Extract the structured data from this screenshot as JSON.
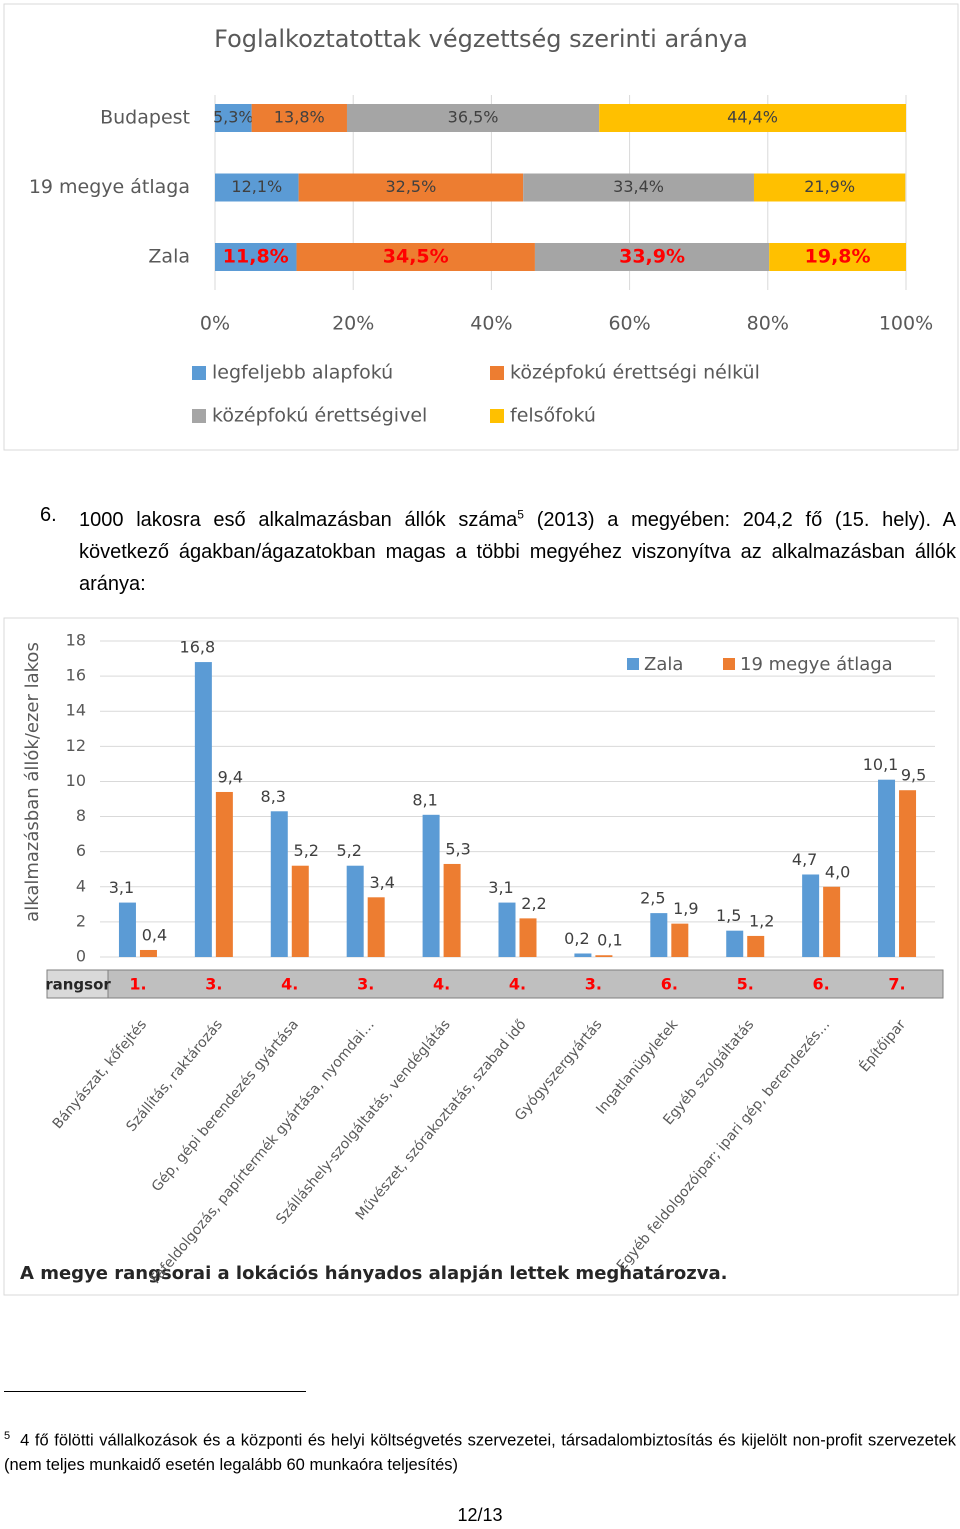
{
  "chart_data": [
    {
      "type": "bar",
      "orientation": "horizontal",
      "stacked": true,
      "grid": true,
      "title": "Foglalkoztatottak végzettség szerinti aránya",
      "categories": [
        "Budapest",
        "19 megye átlaga",
        "Zala"
      ],
      "label_colors": [
        "#404040",
        "#404040",
        "#ff0000"
      ],
      "label_bold": [
        false,
        false,
        true
      ],
      "series": [
        {
          "name": "legfeljebb alapfokú",
          "color": "#5b9bd5",
          "values": [
            5.3,
            12.1,
            11.8
          ],
          "value_labels": [
            "5,3%",
            "12,1%",
            "11,8%"
          ]
        },
        {
          "name": "középfokú érettségi nélkül",
          "color": "#ed7d31",
          "values": [
            13.8,
            32.5,
            34.5
          ],
          "value_labels": [
            "13,8%",
            "32,5%",
            "34,5%"
          ]
        },
        {
          "name": "középfokú érettségivel",
          "color": "#a5a5a5",
          "values": [
            36.5,
            33.4,
            33.9
          ],
          "value_labels": [
            "36,5%",
            "33,4%",
            "33,9%"
          ]
        },
        {
          "name": "felsőfokú",
          "color": "#ffc000",
          "values": [
            44.4,
            21.9,
            19.8
          ],
          "value_labels": [
            "44,4%",
            "21,9%",
            "19,8%"
          ]
        }
      ],
      "xlim": [
        0,
        100
      ],
      "xticks": [
        {
          "value": 0,
          "label": "0%"
        },
        {
          "value": 20,
          "label": "20%"
        },
        {
          "value": 40,
          "label": "40%"
        },
        {
          "value": 60,
          "label": "60%"
        },
        {
          "value": 80,
          "label": "80%"
        },
        {
          "value": 100,
          "label": "100%"
        }
      ]
    },
    {
      "type": "bar",
      "orientation": "vertical",
      "stacked": false,
      "grid": true,
      "y_label": "alkalmazásban állók/ezer lakos",
      "categories": [
        "Bányászat, kőfejtés",
        "Szállítás, raktározás",
        "Gép, gépi berendezés gyártása",
        "Fafeldolgozás, papírtermék gyártása, nyomdai…",
        "Szálláshely-szolgáltatás, vendéglátás",
        "Művészet, szórakoztatás, szabad idő",
        "Gyógyszergyártás",
        "Ingatlanügyletek",
        "Egyéb szolgáltatás",
        "Egyéb feldolgozóipar; ipari gép, berendezés…",
        "Építőipar"
      ],
      "series": [
        {
          "name": "Zala",
          "color": "#5b9bd5",
          "values": [
            3.1,
            16.8,
            8.3,
            5.2,
            8.1,
            3.1,
            0.2,
            2.5,
            1.5,
            4.7,
            10.1
          ],
          "value_labels": [
            "3,1",
            "16,8",
            "8,3",
            "5,2",
            "8,1",
            "3,1",
            "0,2",
            "2,5",
            "1,5",
            "4,7",
            "10,1"
          ]
        },
        {
          "name": "19 megye átlaga",
          "color": "#ed7d31",
          "values": [
            0.4,
            9.4,
            5.2,
            3.4,
            5.3,
            2.2,
            0.1,
            1.9,
            1.2,
            4.0,
            9.5
          ],
          "value_labels": [
            "0,4",
            "9,4",
            "5,2",
            "3,4",
            "5,3",
            "2,2",
            "0,1",
            "1,9",
            "1,2",
            "4,0",
            "9,5"
          ]
        }
      ],
      "ylim": [
        0,
        18
      ],
      "yticks": [
        0,
        2,
        4,
        6,
        8,
        10,
        12,
        14,
        16,
        18
      ],
      "rank_label": "rangsor",
      "ranks": [
        "1.",
        "3.",
        "4.",
        "3.",
        "4.",
        "4.",
        "3.",
        "6.",
        "5.",
        "6.",
        "7."
      ],
      "note": "A megye rangsorai a lokációs hányados alapján lettek meghatározva."
    }
  ],
  "document": {
    "item_number": "6.",
    "paragraph_parts": [
      "1000 lakosra eső alkalmazásban állók száma",
      "5",
      " (2013) a megyében: 204,2 fő (15. hely). A következő ágakban/ágazatokban magas a többi megyéhez viszonyítva az alkalmazásban állók aránya:"
    ],
    "footnote_marker": "5",
    "footnote": "4 fő fölötti vállalkozások és a központi és helyi költségvetés szervezetei, társadalombiztosítás és kijelölt non-profit szervezetek (nem teljes munkaidő esetén legalább 60 munkaóra teljesítés)",
    "page_number": "12/13"
  }
}
